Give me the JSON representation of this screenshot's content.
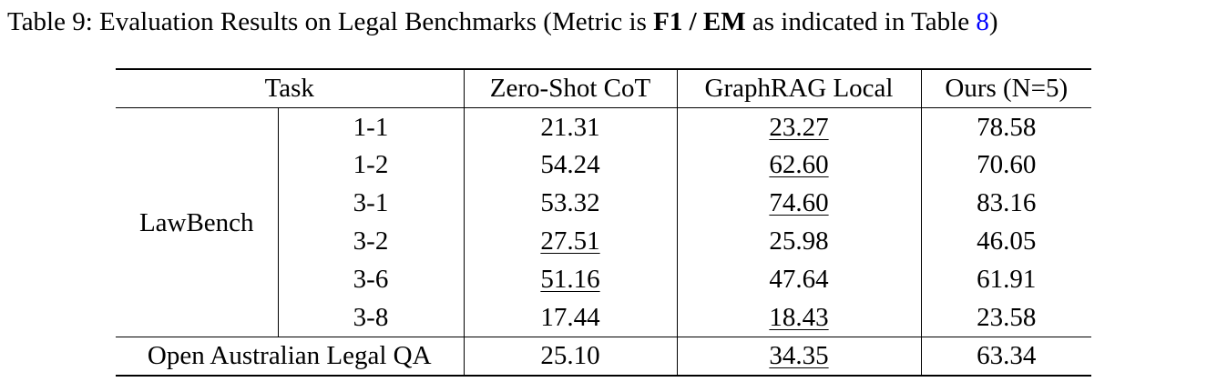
{
  "caption": {
    "prefix": "Table 9: Evaluation Results on Legal Benchmarks (Metric is ",
    "bold": "F1 / EM",
    "middle": " as indicated in Table ",
    "ref": "8",
    "suffix": ")"
  },
  "header": {
    "task": "Task",
    "col1": "Zero-Shot CoT",
    "col2": "GraphRAG Local",
    "col3": "Ours (N=5)"
  },
  "lawbench": {
    "name": "LawBench",
    "rows": [
      {
        "task": "1-1",
        "zero_shot": "21.31",
        "graphrag": "23.27",
        "ours": "78.58"
      },
      {
        "task": "1-2",
        "zero_shot": "54.24",
        "graphrag": "62.60",
        "ours": "70.60"
      },
      {
        "task": "3-1",
        "zero_shot": "53.32",
        "graphrag": "74.60",
        "ours": "83.16"
      },
      {
        "task": "3-2",
        "zero_shot": "27.51",
        "graphrag": "25.98",
        "ours": "46.05"
      },
      {
        "task": "3-6",
        "zero_shot": "51.16",
        "graphrag": "47.64",
        "ours": "61.91"
      },
      {
        "task": "3-8",
        "zero_shot": "17.44",
        "graphrag": "18.43",
        "ours": "23.58"
      }
    ]
  },
  "oalqa": {
    "name": "Open Australian Legal QA",
    "zero_shot": "25.10",
    "graphrag": "34.35",
    "ours": "63.34"
  }
}
